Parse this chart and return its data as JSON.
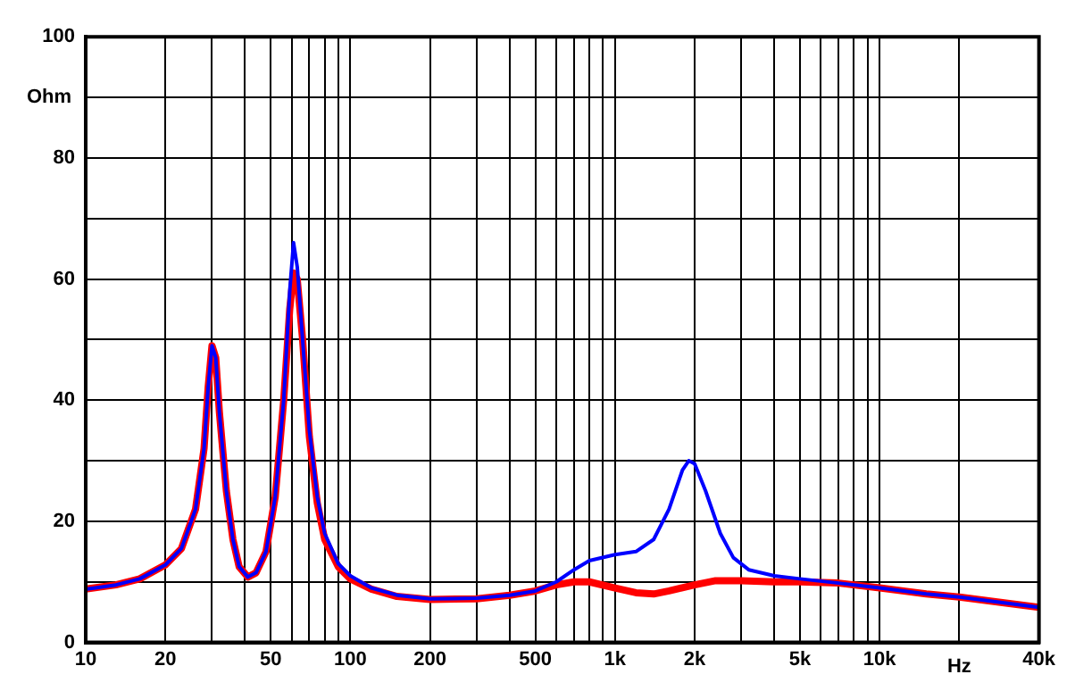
{
  "chart_data": {
    "type": "line",
    "xlabel": "Hz",
    "ylabel": "Ohm",
    "log": "x",
    "xlim": [
      10,
      40000
    ],
    "ylim": [
      0,
      100
    ],
    "grid": true,
    "marker": "none",
    "line_style": "solid",
    "xticks": [
      10,
      20,
      {
        "value": 30,
        "label": null
      },
      {
        "value": 40,
        "label": null
      },
      50,
      {
        "value": 60,
        "label": null
      },
      {
        "value": 70,
        "label": null
      },
      {
        "value": 80,
        "label": null
      },
      {
        "value": 90,
        "label": null
      },
      100,
      200,
      {
        "value": 300,
        "label": null
      },
      {
        "value": 400,
        "label": null
      },
      500,
      {
        "value": 600,
        "label": null
      },
      {
        "value": 700,
        "label": null
      },
      {
        "value": 800,
        "label": null
      },
      {
        "value": 900,
        "label": null
      },
      {
        "value": 1000,
        "label": "1k"
      },
      {
        "value": 2000,
        "label": "2k"
      },
      {
        "value": 3000,
        "label": null
      },
      {
        "value": 4000,
        "label": null
      },
      {
        "value": 5000,
        "label": "5k"
      },
      {
        "value": 6000,
        "label": null
      },
      {
        "value": 7000,
        "label": null
      },
      {
        "value": 8000,
        "label": null
      },
      {
        "value": 9000,
        "label": null
      },
      {
        "value": 10000,
        "label": "10k"
      },
      {
        "value": 20000,
        "label": null
      },
      {
        "value": 40000,
        "label": "40k"
      }
    ],
    "yticks": [
      0,
      {
        "value": 10,
        "label": null
      },
      20,
      {
        "value": 30,
        "label": null
      },
      40,
      {
        "value": 50,
        "label": null
      },
      60,
      {
        "value": 70,
        "label": null
      },
      80,
      {
        "value": 90,
        "label": null
      },
      100
    ],
    "series": [
      {
        "color": "#ff0000",
        "x": [
          10,
          13,
          16,
          20,
          23,
          26,
          28,
          29,
          30,
          31,
          32,
          34,
          36,
          38,
          41,
          44,
          48,
          52,
          56,
          59,
          61,
          63,
          66,
          70,
          75,
          80,
          90,
          100,
          120,
          150,
          200,
          300,
          400,
          500,
          600,
          700,
          800,
          1000,
          1200,
          1400,
          1600,
          2000,
          2400,
          3000,
          4000,
          5000,
          7000,
          10000,
          15000,
          20000,
          30000,
          40000
        ],
        "values": [
          8.8,
          9.5,
          10.5,
          12.8,
          15.5,
          22,
          32,
          42,
          49,
          47,
          38,
          25,
          17,
          12.5,
          10.8,
          11.5,
          15,
          24,
          40,
          55,
          61,
          60,
          50,
          34,
          23,
          17,
          12.5,
          10.5,
          8.8,
          7.6,
          7.1,
          7.2,
          7.8,
          8.5,
          9.5,
          10,
          10,
          9,
          8.2,
          8,
          8.5,
          9.5,
          10.2,
          10.2,
          10,
          10,
          9.8,
          9,
          8,
          7.5,
          6.5,
          5.8
        ]
      },
      {
        "color": "#0000ff",
        "x": [
          10,
          13,
          16,
          20,
          23,
          26,
          28,
          29,
          30,
          31,
          32,
          34,
          36,
          38,
          41,
          44,
          48,
          52,
          56,
          59,
          61,
          63,
          66,
          70,
          75,
          80,
          90,
          100,
          120,
          150,
          200,
          300,
          400,
          500,
          600,
          700,
          800,
          1000,
          1200,
          1400,
          1600,
          1800,
          1900,
          2000,
          2200,
          2500,
          2800,
          3200,
          4000,
          5000,
          7000,
          10000,
          15000,
          20000,
          30000,
          40000
        ],
        "values": [
          8.8,
          9.5,
          10.5,
          12.8,
          15.5,
          22,
          32,
          42,
          49,
          47,
          38,
          25,
          17,
          12.5,
          10.8,
          11.5,
          15,
          24,
          40,
          58,
          66,
          62,
          50,
          35,
          24,
          18,
          13,
          11,
          9,
          7.8,
          7.2,
          7.3,
          7.8,
          8.5,
          10,
          12,
          13.5,
          14.5,
          15,
          17,
          22,
          28.5,
          30,
          29.5,
          25,
          18,
          14,
          12,
          11,
          10.5,
          9.8,
          9,
          8,
          7.5,
          6.5,
          5.8
        ]
      }
    ]
  }
}
